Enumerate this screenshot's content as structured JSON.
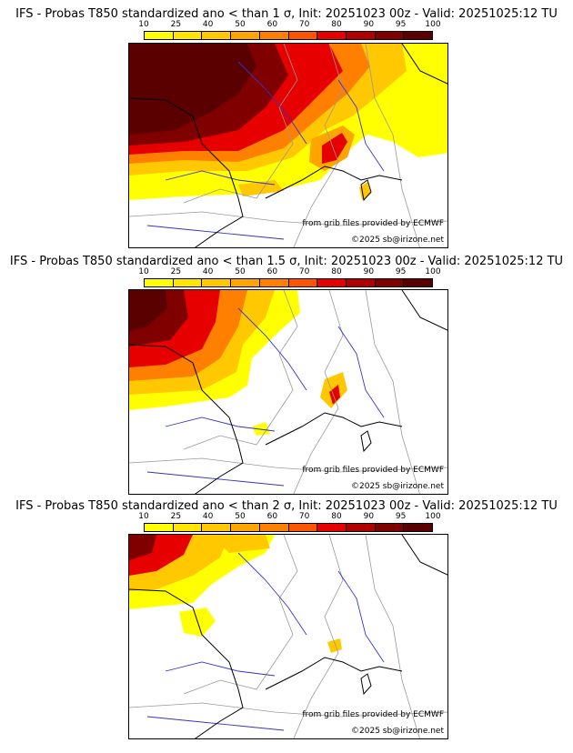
{
  "colorbar": {
    "labels": [
      "10",
      "25",
      "40",
      "50",
      "60",
      "70",
      "80",
      "90",
      "95",
      "100"
    ],
    "colors": [
      "#ffff00",
      "#ffe600",
      "#ffc800",
      "#ffa500",
      "#ff8000",
      "#ff5500",
      "#e60000",
      "#b00000",
      "#800000",
      "#5a0000"
    ]
  },
  "map_colors": {
    "sea": "#ffffff",
    "coast": "#000000",
    "rivers": "#3333cc",
    "borders": "#999999"
  },
  "panels": [
    {
      "title": "IFS - Probas T850  standardized ano < than 1 σ, Init: 20251023 00z - Valid: 20251025:12 TU",
      "credit_source": "from grib files provided by ECMWF",
      "credit_copy": "©2025 sb@irizone.net"
    },
    {
      "title": "IFS - Probas T850  standardized ano < than 1.5 σ, Init: 20251023 00z - Valid: 20251025:12 TU",
      "credit_source": "from grib files provided by ECMWF",
      "credit_copy": "©2025 sb@irizone.net"
    },
    {
      "title": "IFS - Probas T850  standardized ano < than 2 σ, Init: 20251023 00z - Valid: 20251025:12 TU",
      "credit_source": "from grib files provided by ECMWF",
      "credit_copy": "©2025 sb@irizone.net"
    }
  ]
}
